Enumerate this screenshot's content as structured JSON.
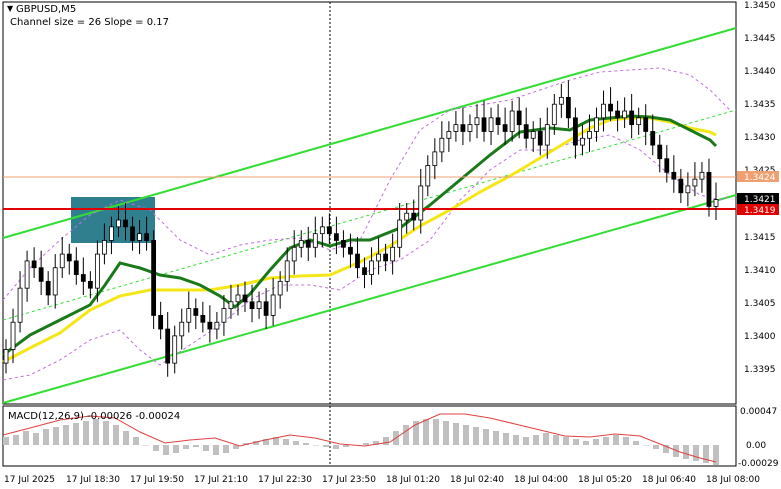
{
  "header": {
    "symbol": "GBPUSD,M5",
    "channel_info": "Channel size = 26 Slope = 0.17"
  },
  "macd": {
    "label": "MACD(12,26,9) -0.00026 -0.00024"
  },
  "price_axis": {
    "ticks": [
      "1.3450",
      "1.3445",
      "1.3440",
      "1.3435",
      "1.3430",
      "1.3425",
      "1.3421",
      "1.3415",
      "1.3410",
      "1.3405",
      "1.3400",
      "1.3395"
    ],
    "current_price": "1.3421",
    "level_orange": "1.3424",
    "level_red": "1.3419"
  },
  "macd_axis": {
    "ticks": [
      "0.00047",
      "0.00",
      "-0.00029"
    ]
  },
  "time_axis": {
    "ticks": [
      "17 Jul 2025",
      "17 Jul 18:30",
      "17 Jul 19:50",
      "17 Jul 21:10",
      "17 Jul 22:30",
      "17 Jul 23:50",
      "18 Jul 01:20",
      "18 Jul 02:40",
      "18 Jul 04:00",
      "18 Jul 05:20",
      "18 Jul 06:40",
      "18 Jul 08:00"
    ]
  },
  "colors": {
    "background": "#ffffff",
    "bull_candle": "#000000",
    "channel": "#33dd33",
    "ma_fast": "#1a7a1a",
    "ma_slow": "#f5e616",
    "bands": "#c070e0",
    "red_level": "#e00000",
    "orange_level": "#f0a070",
    "zone": "#2f7f8f",
    "macd_hist": "#c0c0c0",
    "macd_signal": "#e04040"
  },
  "chart_data": {
    "type": "candlestick",
    "series": [
      {
        "name": "GBPUSD,M5",
        "values": [
          1.34,
          1.3404,
          1.3409,
          1.3413,
          1.3412,
          1.341,
          1.3408,
          1.3412,
          1.3414,
          1.3413,
          1.3411,
          1.341,
          1.3409,
          1.3414,
          1.3416,
          1.3418,
          1.3419,
          1.3418,
          1.3416,
          1.3417,
          1.3416,
          1.3405,
          1.3403,
          1.3398,
          1.3402,
          1.3404,
          1.3406,
          1.3405,
          1.3404,
          1.3403,
          1.3404,
          1.3406,
          1.3407,
          1.3408,
          1.3407,
          1.3406,
          1.3407,
          1.3405,
          1.3408,
          1.341,
          1.3413,
          1.3415,
          1.3416,
          1.3415,
          1.3417,
          1.3418,
          1.3417,
          1.3416,
          1.3415,
          1.3414,
          1.3412,
          1.3411,
          1.3413,
          1.3414,
          1.3413,
          1.3415,
          1.3419,
          1.342,
          1.3419,
          1.3424,
          1.3427,
          1.3429,
          1.3431,
          1.3432,
          1.3433,
          1.3432,
          1.3433,
          1.3434,
          1.3432,
          1.3434,
          1.3433,
          1.3432,
          1.3435,
          1.3433,
          1.3431,
          1.3432,
          1.343,
          1.3433,
          1.3436,
          1.3437,
          1.3434,
          1.343,
          1.3431,
          1.3432,
          1.3434,
          1.3436,
          1.3435,
          1.3434,
          1.3435,
          1.3433,
          1.3434,
          1.3432,
          1.343,
          1.3428,
          1.3426,
          1.3425,
          1.3423,
          1.3424,
          1.3425,
          1.3426,
          1.3421,
          1.3422
        ]
      }
    ],
    "ylim": [
      1.3392,
      1.3451
    ],
    "levels": {
      "orange": 1.3424,
      "red": 1.3419
    },
    "grid": false,
    "title": "GBPUSD,M5"
  }
}
